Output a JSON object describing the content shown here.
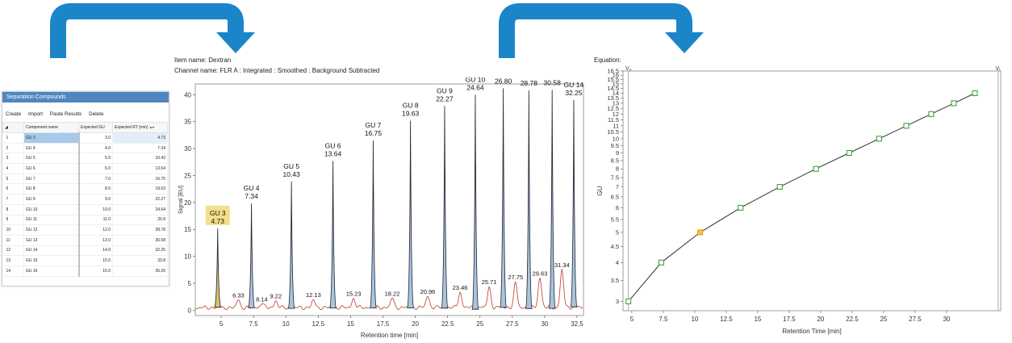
{
  "panel": {
    "title": "Separation Compounds",
    "toolbar": [
      "Create",
      "Import",
      "Paste Results",
      "Delete"
    ],
    "columns": [
      "",
      "Component name",
      "Expected GU",
      "Expected RT (min)"
    ],
    "rows": [
      {
        "idx": "1",
        "name": "GU 3",
        "gu": "3.0",
        "rt": "4.73"
      },
      {
        "idx": "2",
        "name": "GU 4",
        "gu": "4.0",
        "rt": "7.34"
      },
      {
        "idx": "3",
        "name": "GU 5",
        "gu": "5.0",
        "rt": "10.43"
      },
      {
        "idx": "4",
        "name": "GU 6",
        "gu": "6.0",
        "rt": "13.64"
      },
      {
        "idx": "5",
        "name": "GU 7",
        "gu": "7.0",
        "rt": "16.75"
      },
      {
        "idx": "6",
        "name": "GU 8",
        "gu": "8.0",
        "rt": "19.63"
      },
      {
        "idx": "7",
        "name": "GU 9",
        "gu": "9.0",
        "rt": "22.27"
      },
      {
        "idx": "8",
        "name": "GU 10",
        "gu": "10.0",
        "rt": "24.64"
      },
      {
        "idx": "9",
        "name": "GU 11",
        "gu": "11.0",
        "rt": "26.8"
      },
      {
        "idx": "10",
        "name": "GU 12",
        "gu": "12.0",
        "rt": "28.78"
      },
      {
        "idx": "11",
        "name": "GU 13",
        "gu": "13.0",
        "rt": "30.58"
      },
      {
        "idx": "12",
        "name": "GU 14",
        "gu": "14.0",
        "rt": "32.25"
      },
      {
        "idx": "13",
        "name": "GU 15",
        "gu": "15.0",
        "rt": "33.8"
      },
      {
        "idx": "14",
        "name": "GU 16",
        "gu": "16.0",
        "rt": "35.26"
      }
    ],
    "selected_row": 0
  },
  "chromatogram": {
    "item_name": "Item name: Dextran",
    "channel_name": "Channel name: FLR A : Integrated : Smoothed : Background Subtracted"
  },
  "equation_label": "Equation:",
  "colors": {
    "arrow": "#1a86c9",
    "panel_header": "#4f86bf",
    "peak_fill": "#a9c5de",
    "highlight": "#f2e08a",
    "curve_marker": "#2e9b2e",
    "selected_marker": "#e69a00"
  },
  "chart_data": [
    {
      "type": "area",
      "xlabel": "Retention time [min]",
      "ylabel": "Signal [EU]",
      "xlim": [
        3,
        33
      ],
      "ylim": [
        -1,
        42
      ],
      "xticks": [
        "5",
        "7.5",
        "10",
        "12.5",
        "15",
        "17.5",
        "20",
        "22.5",
        "25",
        "27.5",
        "30",
        "32.5"
      ],
      "yticks": [
        "0",
        "5",
        "10",
        "15",
        "20",
        "25",
        "30",
        "35",
        "40"
      ],
      "peaks": [
        {
          "name": "GU 3",
          "rt": "4.73",
          "x": 4.73,
          "h": 15.2,
          "highlight": true
        },
        {
          "name": "GU 4",
          "rt": "7.34",
          "x": 7.34,
          "h": 19.8
        },
        {
          "name": "GU 5",
          "rt": "10.43",
          "x": 10.43,
          "h": 23.9
        },
        {
          "name": "GU 6",
          "rt": "13.64",
          "x": 13.64,
          "h": 27.7
        },
        {
          "name": "GU 7",
          "rt": "16.75",
          "x": 16.75,
          "h": 31.5
        },
        {
          "name": "GU 8",
          "rt": "19.63",
          "x": 19.63,
          "h": 35.2
        },
        {
          "name": "GU 9",
          "rt": "22.27",
          "x": 22.27,
          "h": 37.9
        },
        {
          "name": "GU 10",
          "rt": "24.64",
          "x": 24.64,
          "h": 40.0
        },
        {
          "name": "GU 11",
          "rt": "26.80",
          "x": 26.8,
          "h": 41.2
        },
        {
          "name": "GU 12",
          "rt": "28.78",
          "x": 28.78,
          "h": 40.8
        },
        {
          "name": "GU 13",
          "rt": "30.58",
          "x": 30.58,
          "h": 40.9
        },
        {
          "name": "GU 14",
          "rt": "32.25",
          "x": 32.25,
          "h": 39.0
        }
      ],
      "minor_peaks": [
        {
          "label": "6.33",
          "x": 6.33,
          "h": 1.5
        },
        {
          "label": "8.14",
          "x": 8.14,
          "h": 0.9
        },
        {
          "label": "9.22",
          "x": 9.22,
          "h": 1.3
        },
        {
          "label": "12.13",
          "x": 12.13,
          "h": 1.4
        },
        {
          "label": "15.23",
          "x": 15.23,
          "h": 1.7
        },
        {
          "label": "18.22",
          "x": 18.22,
          "h": 1.8
        },
        {
          "label": "20.96",
          "x": 20.96,
          "h": 2.2
        },
        {
          "label": "23.46",
          "x": 23.46,
          "h": 2.9
        },
        {
          "label": "25.71",
          "x": 25.71,
          "h": 3.7
        },
        {
          "label": "27.75",
          "x": 27.75,
          "h": 4.5
        },
        {
          "label": "29.63",
          "x": 29.63,
          "h": 5.6
        },
        {
          "label": "31.34",
          "x": 31.34,
          "h": 6.9
        }
      ]
    },
    {
      "type": "scatter",
      "xlabel": "Retention Time [min]",
      "ylabel": "GU",
      "xlim": [
        4.3,
        34.3
      ],
      "ylim": [
        2.8,
        16.5
      ],
      "log_y": true,
      "xticks": [
        "5",
        "7.5",
        "10",
        "12.5",
        "15",
        "17.5",
        "20",
        "22.5",
        "25",
        "27.5",
        "30"
      ],
      "yticks": [
        "3",
        "3.5",
        "4",
        "4.5",
        "5",
        "5.5",
        "6",
        "6.5",
        "7",
        "7.5",
        "8",
        "8.5",
        "9",
        "9.5",
        "10",
        "10.5",
        "11",
        "11.5",
        "12",
        "12.5",
        "13",
        "13.5",
        "14",
        "14.5",
        "15",
        "15.5",
        "16",
        "16.5"
      ],
      "points": [
        {
          "x": 4.73,
          "y": 3
        },
        {
          "x": 7.34,
          "y": 4
        },
        {
          "x": 10.43,
          "y": 5,
          "selected": true
        },
        {
          "x": 13.64,
          "y": 6
        },
        {
          "x": 16.75,
          "y": 7
        },
        {
          "x": 19.63,
          "y": 8
        },
        {
          "x": 22.27,
          "y": 9
        },
        {
          "x": 24.64,
          "y": 10
        },
        {
          "x": 26.8,
          "y": 11
        },
        {
          "x": 28.78,
          "y": 12
        },
        {
          "x": 30.58,
          "y": 13
        },
        {
          "x": 32.25,
          "y": 14
        }
      ],
      "vlines": [
        {
          "label": "Vₒ",
          "x": 4.73
        },
        {
          "label": "Vₜ",
          "x": 34.1
        }
      ]
    }
  ]
}
